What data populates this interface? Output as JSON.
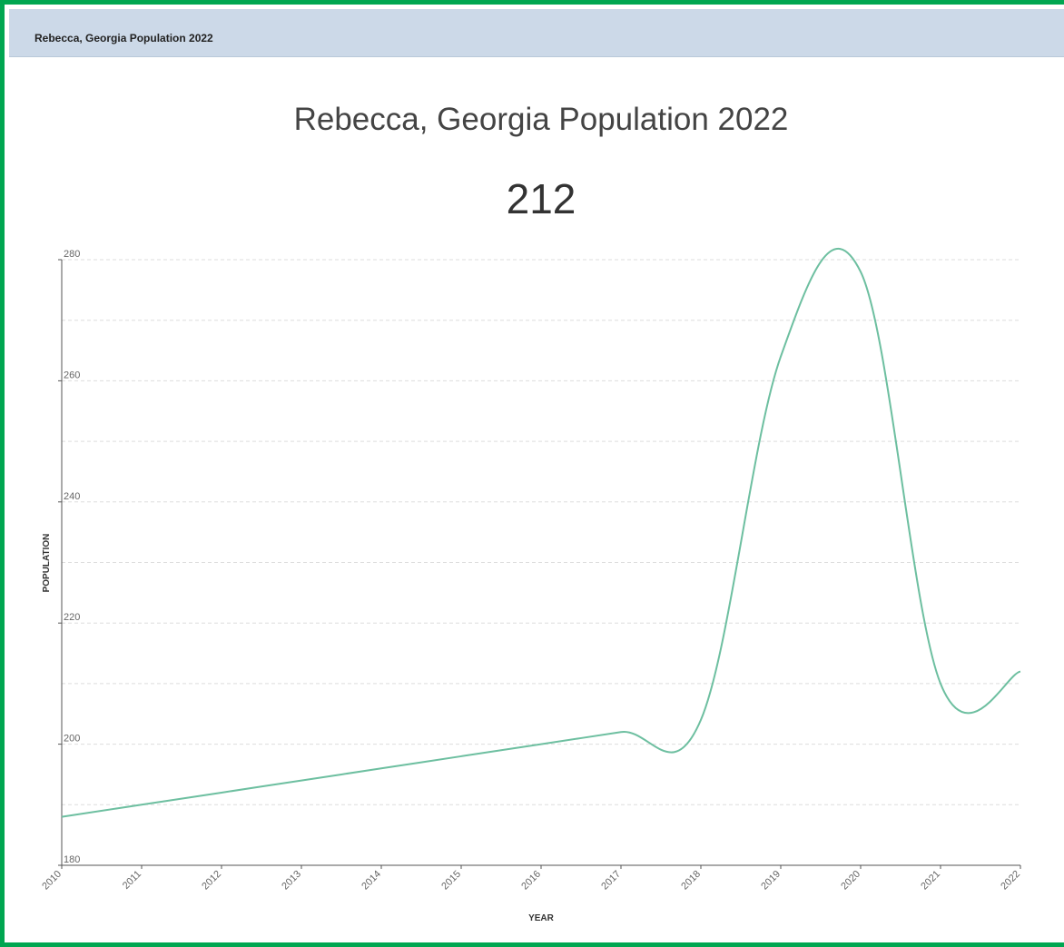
{
  "panel": {
    "title": "Rebecca, Georgia Population 2022"
  },
  "headline": {
    "title": "Rebecca, Georgia Population 2022",
    "value": "212"
  },
  "colors": {
    "border": "#00a651",
    "header_bg": "#ccd9e8",
    "line": "#6dbfa0",
    "grid": "#dddddd"
  },
  "chart_data": {
    "type": "line",
    "title": "Rebecca, Georgia Population 2022",
    "xlabel": "YEAR",
    "ylabel": "POPULATION",
    "x": [
      2010,
      2011,
      2012,
      2013,
      2014,
      2015,
      2016,
      2017,
      2018,
      2019,
      2020,
      2021,
      2022
    ],
    "xticks": [
      "2010",
      "2011",
      "2012",
      "2013",
      "2014",
      "2015",
      "2016",
      "2017",
      "2018",
      "2019",
      "2020",
      "2021",
      "2022"
    ],
    "yticks": [
      "180",
      "200",
      "220",
      "240",
      "260",
      "280"
    ],
    "ylim": [
      180,
      280
    ],
    "xlim": [
      2010,
      2022
    ],
    "grid": true,
    "series": [
      {
        "values": [
          188,
          190,
          192,
          194,
          196,
          198,
          200,
          202,
          204,
          264,
          278,
          210,
          212
        ]
      }
    ]
  }
}
